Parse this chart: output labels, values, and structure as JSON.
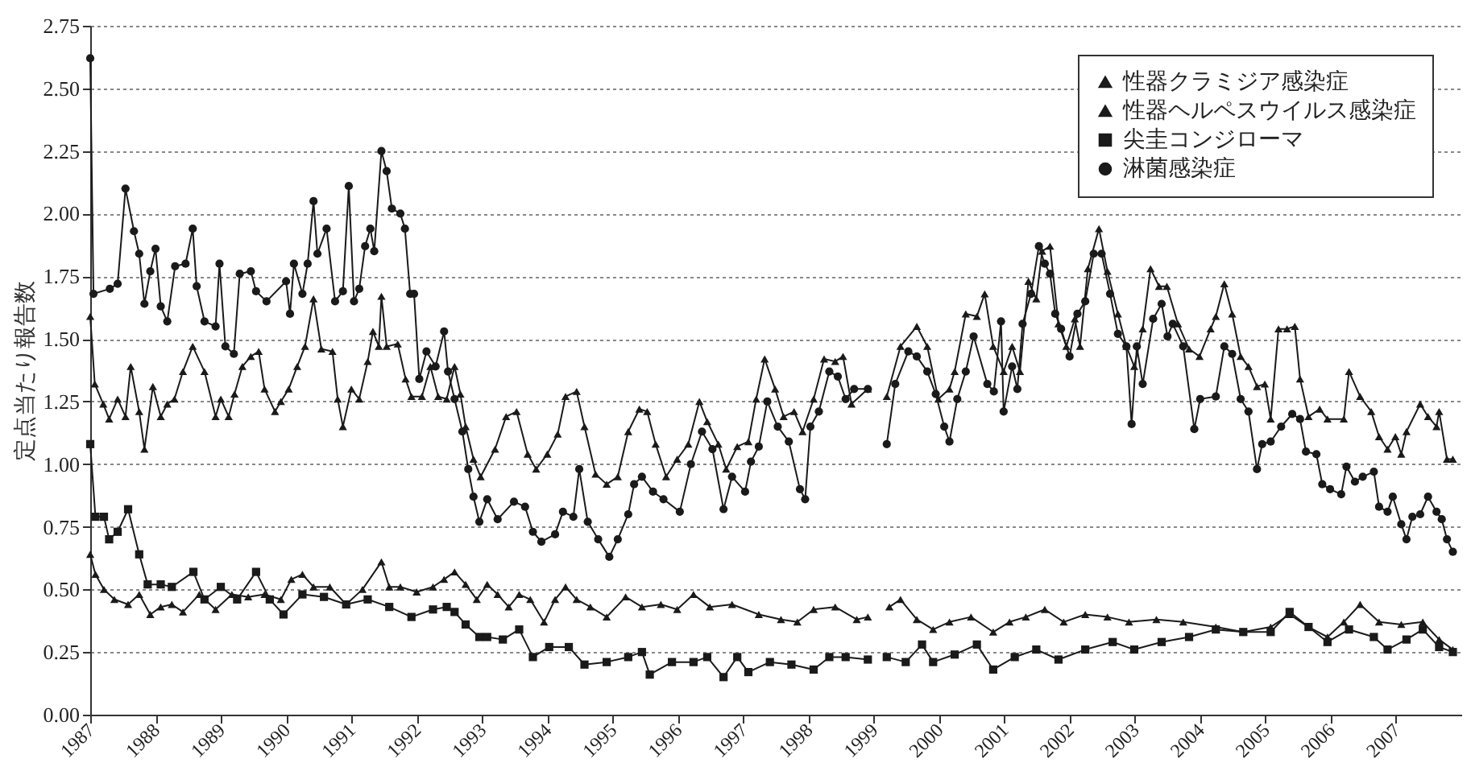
{
  "chart_data": {
    "type": "line",
    "ylabel": "定点当たり報告数",
    "xlim": [
      1987,
      2008
    ],
    "xticks": [
      1987,
      1988,
      1989,
      1990,
      1991,
      1992,
      1993,
      1994,
      1995,
      1996,
      1997,
      1998,
      1999,
      2000,
      2001,
      2002,
      2003,
      2004,
      2005,
      2006,
      2007
    ],
    "ylim": [
      0,
      2.75
    ],
    "yticks": [
      {
        "value": 0,
        "label": "0.00"
      },
      {
        "value": 0.25,
        "label": "0.25"
      },
      {
        "value": 0.5,
        "label": "0.50"
      },
      {
        "value": 0.75,
        "label": "0.75"
      },
      {
        "value": 1,
        "label": "1.00"
      },
      {
        "value": 1.25,
        "label": "1.25"
      },
      {
        "value": 1.5,
        "label": "1.50"
      },
      {
        "value": 1.75,
        "label": "1.75"
      },
      {
        "value": 2,
        "label": "2.00"
      },
      {
        "value": 2.25,
        "label": "2.25"
      },
      {
        "value": 2.5,
        "label": "2.50"
      },
      {
        "value": 2.75,
        "label": "2.75"
      }
    ],
    "grid": "y",
    "legend": "top right",
    "line_style": "solid",
    "series": [
      {
        "name": "性器クラミジア感染症",
        "color": "#1a1a1a",
        "marker": "triangle",
        "x": [
          1987.0,
          1987.07,
          1987.2,
          1987.29,
          1987.42,
          1987.54,
          1987.62,
          1987.75,
          1987.83,
          1987.96,
          1988.08,
          1988.18,
          1988.29,
          1988.42,
          1988.57,
          1988.75,
          1988.92,
          1989.0,
          1989.12,
          1989.21,
          1989.33,
          1989.46,
          1989.58,
          1989.67,
          1989.83,
          1989.92,
          1990.04,
          1990.17,
          1990.29,
          1990.42,
          1990.54,
          1990.71,
          1990.79,
          1990.87,
          1991.0,
          1991.12,
          1991.25,
          1991.33,
          1991.42,
          1991.46,
          1991.54,
          1991.71,
          1991.83,
          1991.92,
          1992.08,
          1992.21,
          1992.33,
          1992.46,
          1992.58,
          1992.67,
          1992.75,
          1992.87,
          1992.98,
          1993.2,
          1993.37,
          1993.53,
          1993.7,
          1993.83,
          1994.0,
          1994.16,
          1994.28,
          1994.45,
          1994.57,
          1994.74,
          1994.91,
          1995.08,
          1995.24,
          1995.41,
          1995.53,
          1995.66,
          1995.82,
          1995.99,
          1996.16,
          1996.33,
          1996.45,
          1996.62,
          1996.74,
          1996.91,
          1997.08,
          1997.2,
          1997.33,
          1997.49,
          1997.62,
          1997.78,
          1997.91,
          1998.08,
          1998.24,
          1998.41,
          1998.53,
          1998.66,
          1998.91,
          1999.1,
          1999.2,
          1999.41,
          1999.66,
          1999.82,
          1999.99,
          2000.16,
          2000.24,
          2000.41,
          2000.58,
          2000.7,
          2000.83,
          2000.99,
          2001.12,
          2001.24,
          2001.37,
          2001.49,
          2001.58,
          2001.7,
          2001.83,
          2001.95,
          2002.08,
          2002.16,
          2002.28,
          2002.45,
          2002.58,
          2002.74,
          2002.87,
          2002.99,
          2003.12,
          2003.24,
          2003.37,
          2003.49,
          2003.66,
          2003.83,
          2003.99,
          2004.16,
          2004.24,
          2004.37,
          2004.49,
          2004.62,
          2004.74,
          2004.87,
          2004.99,
          2005.08,
          2005.2,
          2005.33,
          2005.45,
          2005.53,
          2005.66,
          2005.83,
          2005.95,
          2006.2,
          2006.28,
          2006.45,
          2006.62,
          2006.74,
          2006.87,
          2006.99,
          2007.08,
          2007.16,
          2007.37,
          2007.49,
          2007.62,
          2007.66,
          2007.78,
          2007.87
        ],
        "values": [
          1.59,
          1.32,
          1.24,
          1.18,
          1.26,
          1.19,
          1.39,
          1.21,
          1.06,
          1.31,
          1.19,
          1.24,
          1.26,
          1.37,
          1.47,
          1.37,
          1.19,
          1.26,
          1.19,
          1.28,
          1.39,
          1.43,
          1.45,
          1.3,
          1.21,
          1.25,
          1.3,
          1.39,
          1.47,
          1.66,
          1.46,
          1.45,
          1.26,
          1.15,
          1.3,
          1.26,
          1.41,
          1.53,
          1.47,
          1.67,
          1.47,
          1.48,
          1.34,
          1.27,
          1.27,
          1.39,
          1.27,
          1.26,
          1.39,
          1.28,
          1.15,
          1.02,
          0.95,
          1.06,
          1.19,
          1.21,
          1.04,
          0.98,
          1.04,
          1.12,
          1.27,
          1.29,
          1.15,
          0.96,
          0.92,
          0.95,
          1.13,
          1.22,
          1.21,
          1.08,
          0.95,
          1.02,
          1.08,
          1.25,
          1.17,
          1.08,
          0.98,
          1.07,
          1.09,
          1.26,
          1.42,
          1.3,
          1.19,
          1.21,
          1.13,
          1.26,
          1.42,
          1.41,
          1.43,
          1.24,
          1.3,
          null,
          1.27,
          1.47,
          1.55,
          1.47,
          1.26,
          1.3,
          1.37,
          1.6,
          1.59,
          1.68,
          1.47,
          1.37,
          1.47,
          1.37,
          1.73,
          1.66,
          1.85,
          1.87,
          1.56,
          1.47,
          1.58,
          1.47,
          1.78,
          1.94,
          1.77,
          1.6,
          1.47,
          1.39,
          1.54,
          1.78,
          1.71,
          1.71,
          1.56,
          1.46,
          1.43,
          1.54,
          1.59,
          1.72,
          1.6,
          1.43,
          1.39,
          1.31,
          1.32,
          1.18,
          1.54,
          1.54,
          1.55,
          1.34,
          1.19,
          1.22,
          1.18,
          1.18,
          1.37,
          1.27,
          1.21,
          1.11,
          1.06,
          1.11,
          1.04,
          1.13,
          1.24,
          1.19,
          1.15,
          1.21,
          1.02,
          1.02
        ]
      },
      {
        "name": "性器ヘルペスウイルス感染症",
        "color": "#1a1a1a",
        "marker": "triangle",
        "x": [
          1987.0,
          1987.08,
          1987.21,
          1987.37,
          1987.58,
          1987.75,
          1987.92,
          1988.08,
          1988.25,
          1988.42,
          1988.67,
          1988.92,
          1989.17,
          1989.42,
          1989.67,
          1989.92,
          1990.08,
          1990.25,
          1990.42,
          1990.67,
          1990.92,
          1991.17,
          1991.46,
          1991.58,
          1991.75,
          1992.0,
          1992.25,
          1992.42,
          1992.58,
          1992.75,
          1992.92,
          1993.08,
          1993.24,
          1993.41,
          1993.57,
          1993.74,
          1993.95,
          1994.12,
          1994.28,
          1994.45,
          1994.66,
          1994.91,
          1995.2,
          1995.45,
          1995.74,
          1995.99,
          1996.24,
          1996.49,
          1996.83,
          1997.24,
          1997.58,
          1997.83,
          1998.08,
          1998.41,
          1998.74,
          1998.91,
          1999.1,
          1999.24,
          1999.41,
          1999.66,
          1999.91,
          2000.16,
          2000.49,
          2000.83,
          2001.08,
          2001.33,
          2001.62,
          2001.91,
          2002.24,
          2002.58,
          2002.91,
          2003.33,
          2003.74,
          2004.24,
          2004.66,
          2005.08,
          2005.37,
          2005.66,
          2005.95,
          2006.2,
          2006.45,
          2006.74,
          2007.08,
          2007.41,
          2007.66,
          2007.87
        ],
        "values": [
          0.64,
          0.56,
          0.5,
          0.46,
          0.44,
          0.48,
          0.4,
          0.43,
          0.44,
          0.41,
          0.48,
          0.42,
          0.48,
          0.47,
          0.48,
          0.46,
          0.54,
          0.56,
          0.51,
          0.51,
          0.44,
          0.5,
          0.61,
          0.51,
          0.51,
          0.49,
          0.51,
          0.54,
          0.57,
          0.52,
          0.46,
          0.52,
          0.48,
          0.43,
          0.48,
          0.46,
          0.37,
          0.46,
          0.51,
          0.46,
          0.43,
          0.39,
          0.47,
          0.43,
          0.44,
          0.42,
          0.48,
          0.43,
          0.44,
          0.4,
          0.38,
          0.37,
          0.42,
          0.43,
          0.38,
          0.39,
          null,
          0.43,
          0.46,
          0.38,
          0.34,
          0.37,
          0.39,
          0.33,
          0.37,
          0.39,
          0.42,
          0.37,
          0.4,
          0.39,
          0.37,
          0.38,
          0.37,
          0.35,
          0.33,
          0.35,
          0.4,
          0.35,
          0.31,
          0.37,
          0.44,
          0.37,
          0.36,
          0.37,
          0.3,
          0.26
        ]
      },
      {
        "name": "尖圭コンジローマ",
        "color": "#1a1a1a",
        "marker": "square",
        "x": [
          1987.0,
          1987.08,
          1987.21,
          1987.29,
          1987.42,
          1987.58,
          1987.75,
          1987.88,
          1988.08,
          1988.25,
          1988.58,
          1988.75,
          1989.0,
          1989.25,
          1989.54,
          1989.75,
          1989.96,
          1990.25,
          1990.58,
          1990.92,
          1991.25,
          1991.58,
          1991.92,
          1992.25,
          1992.46,
          1992.58,
          1992.75,
          1992.96,
          1993.08,
          1993.32,
          1993.57,
          1993.78,
          1994.03,
          1994.33,
          1994.57,
          1994.91,
          1995.24,
          1995.45,
          1995.57,
          1995.91,
          1996.24,
          1996.45,
          1996.7,
          1996.91,
          1997.08,
          1997.41,
          1997.74,
          1998.08,
          1998.32,
          1998.57,
          1998.91,
          1999.1,
          1999.2,
          1999.49,
          1999.74,
          1999.91,
          2000.24,
          2000.58,
          2000.83,
          2001.16,
          2001.49,
          2001.83,
          2002.24,
          2002.66,
          2002.99,
          2003.41,
          2003.83,
          2004.24,
          2004.66,
          2005.08,
          2005.37,
          2005.66,
          2005.95,
          2006.28,
          2006.66,
          2006.87,
          2007.16,
          2007.41,
          2007.66,
          2007.87
        ],
        "values": [
          1.08,
          0.79,
          0.79,
          0.7,
          0.73,
          0.82,
          0.64,
          0.52,
          0.52,
          0.51,
          0.57,
          0.46,
          0.51,
          0.46,
          0.57,
          0.46,
          0.4,
          0.48,
          0.47,
          0.44,
          0.46,
          0.43,
          0.39,
          0.42,
          0.43,
          0.41,
          0.36,
          0.31,
          0.31,
          0.3,
          0.34,
          0.23,
          0.27,
          0.27,
          0.2,
          0.21,
          0.23,
          0.25,
          0.16,
          0.21,
          0.21,
          0.23,
          0.15,
          0.23,
          0.17,
          0.21,
          0.2,
          0.18,
          0.23,
          0.23,
          0.22,
          null,
          0.23,
          0.21,
          0.28,
          0.21,
          0.24,
          0.28,
          0.18,
          0.23,
          0.26,
          0.22,
          0.26,
          0.29,
          0.26,
          0.29,
          0.31,
          0.34,
          0.33,
          0.33,
          0.41,
          0.35,
          0.29,
          0.34,
          0.31,
          0.26,
          0.3,
          0.34,
          0.27,
          0.25
        ]
      },
      {
        "name": "淋菌感染症",
        "color": "#1a1a1a",
        "marker": "circle",
        "x": [
          1987.0,
          1987.05,
          1987.3,
          1987.42,
          1987.54,
          1987.67,
          1987.75,
          1987.83,
          1987.92,
          1988.0,
          1988.08,
          1988.18,
          1988.3,
          1988.46,
          1988.57,
          1988.63,
          1988.75,
          1988.92,
          1988.98,
          1989.07,
          1989.2,
          1989.29,
          1989.46,
          1989.54,
          1989.7,
          1990.0,
          1990.06,
          1990.12,
          1990.25,
          1990.33,
          1990.42,
          1990.48,
          1990.62,
          1990.75,
          1990.87,
          1990.96,
          1991.04,
          1991.12,
          1991.21,
          1991.29,
          1991.35,
          1991.46,
          1991.54,
          1991.62,
          1991.75,
          1991.82,
          1991.9,
          1991.96,
          1992.04,
          1992.15,
          1992.29,
          1992.42,
          1992.48,
          1992.58,
          1992.7,
          1992.79,
          1992.87,
          1992.96,
          1993.08,
          1993.24,
          1993.49,
          1993.66,
          1993.78,
          1993.91,
          1994.12,
          1994.24,
          1994.4,
          1994.49,
          1994.62,
          1994.78,
          1994.95,
          1995.08,
          1995.24,
          1995.33,
          1995.45,
          1995.62,
          1995.78,
          1996.03,
          1996.2,
          1996.37,
          1996.53,
          1996.7,
          1996.83,
          1997.03,
          1997.12,
          1997.24,
          1997.37,
          1997.53,
          1997.7,
          1997.87,
          1997.95,
          1998.03,
          1998.16,
          1998.32,
          1998.45,
          1998.57,
          1998.7,
          1998.91,
          1999.1,
          1999.2,
          1999.33,
          1999.53,
          1999.66,
          1999.82,
          1999.95,
          2000.08,
          2000.16,
          2000.28,
          2000.41,
          2000.53,
          2000.74,
          2000.84,
          2000.95,
          2000.99,
          2001.12,
          2001.2,
          2001.28,
          2001.41,
          2001.53,
          2001.62,
          2001.7,
          2001.78,
          2001.87,
          2002.0,
          2002.12,
          2002.24,
          2002.37,
          2002.49,
          2002.62,
          2002.74,
          2002.87,
          2002.95,
          2003.03,
          2003.12,
          2003.28,
          2003.41,
          2003.5,
          2003.58,
          2003.74,
          2003.91,
          2004.0,
          2004.24,
          2004.37,
          2004.49,
          2004.62,
          2004.74,
          2004.87,
          2004.95,
          2005.08,
          2005.24,
          2005.41,
          2005.53,
          2005.62,
          2005.78,
          2005.87,
          2005.99,
          2006.16,
          2006.24,
          2006.37,
          2006.49,
          2006.66,
          2006.74,
          2006.87,
          2006.95,
          2007.08,
          2007.16,
          2007.25,
          2007.37,
          2007.49,
          2007.62,
          2007.7,
          2007.78,
          2007.87
        ],
        "values": [
          2.62,
          1.68,
          1.7,
          1.72,
          2.1,
          1.93,
          1.84,
          1.64,
          1.77,
          1.86,
          1.63,
          1.57,
          1.79,
          1.8,
          1.94,
          1.71,
          1.57,
          1.55,
          1.8,
          1.47,
          1.44,
          1.76,
          1.77,
          1.69,
          1.65,
          1.73,
          1.6,
          1.8,
          1.68,
          1.8,
          2.05,
          1.84,
          1.94,
          1.65,
          1.69,
          2.11,
          1.65,
          1.7,
          1.87,
          1.94,
          1.85,
          2.25,
          2.17,
          2.02,
          2.0,
          1.94,
          1.68,
          1.68,
          1.34,
          1.45,
          1.39,
          1.53,
          1.37,
          1.26,
          1.13,
          0.98,
          0.87,
          0.77,
          0.86,
          0.78,
          0.85,
          0.83,
          0.73,
          0.69,
          0.72,
          0.81,
          0.79,
          0.98,
          0.77,
          0.7,
          0.63,
          0.7,
          0.8,
          0.92,
          0.95,
          0.89,
          0.86,
          0.81,
          1.0,
          1.13,
          1.06,
          0.82,
          0.95,
          0.89,
          1.01,
          1.07,
          1.25,
          1.15,
          1.09,
          0.9,
          0.86,
          1.15,
          1.21,
          1.37,
          1.35,
          1.26,
          1.3,
          1.3,
          null,
          1.08,
          1.32,
          1.45,
          1.43,
          1.37,
          1.28,
          1.15,
          1.09,
          1.26,
          1.37,
          1.51,
          1.32,
          1.29,
          1.57,
          1.21,
          1.39,
          1.3,
          1.56,
          1.68,
          1.87,
          1.8,
          1.76,
          1.6,
          1.54,
          1.43,
          1.6,
          1.65,
          1.84,
          1.84,
          1.68,
          1.52,
          1.47,
          1.16,
          1.47,
          1.32,
          1.58,
          1.64,
          1.51,
          1.56,
          1.47,
          1.14,
          1.26,
          1.27,
          1.47,
          1.44,
          1.26,
          1.21,
          0.98,
          1.08,
          1.09,
          1.15,
          1.2,
          1.18,
          1.05,
          1.04,
          0.92,
          0.9,
          0.88,
          0.99,
          0.93,
          0.95,
          0.97,
          0.83,
          0.81,
          0.87,
          0.76,
          0.7,
          0.79,
          0.8,
          0.87,
          0.81,
          0.78,
          0.7,
          0.65
        ]
      }
    ]
  }
}
